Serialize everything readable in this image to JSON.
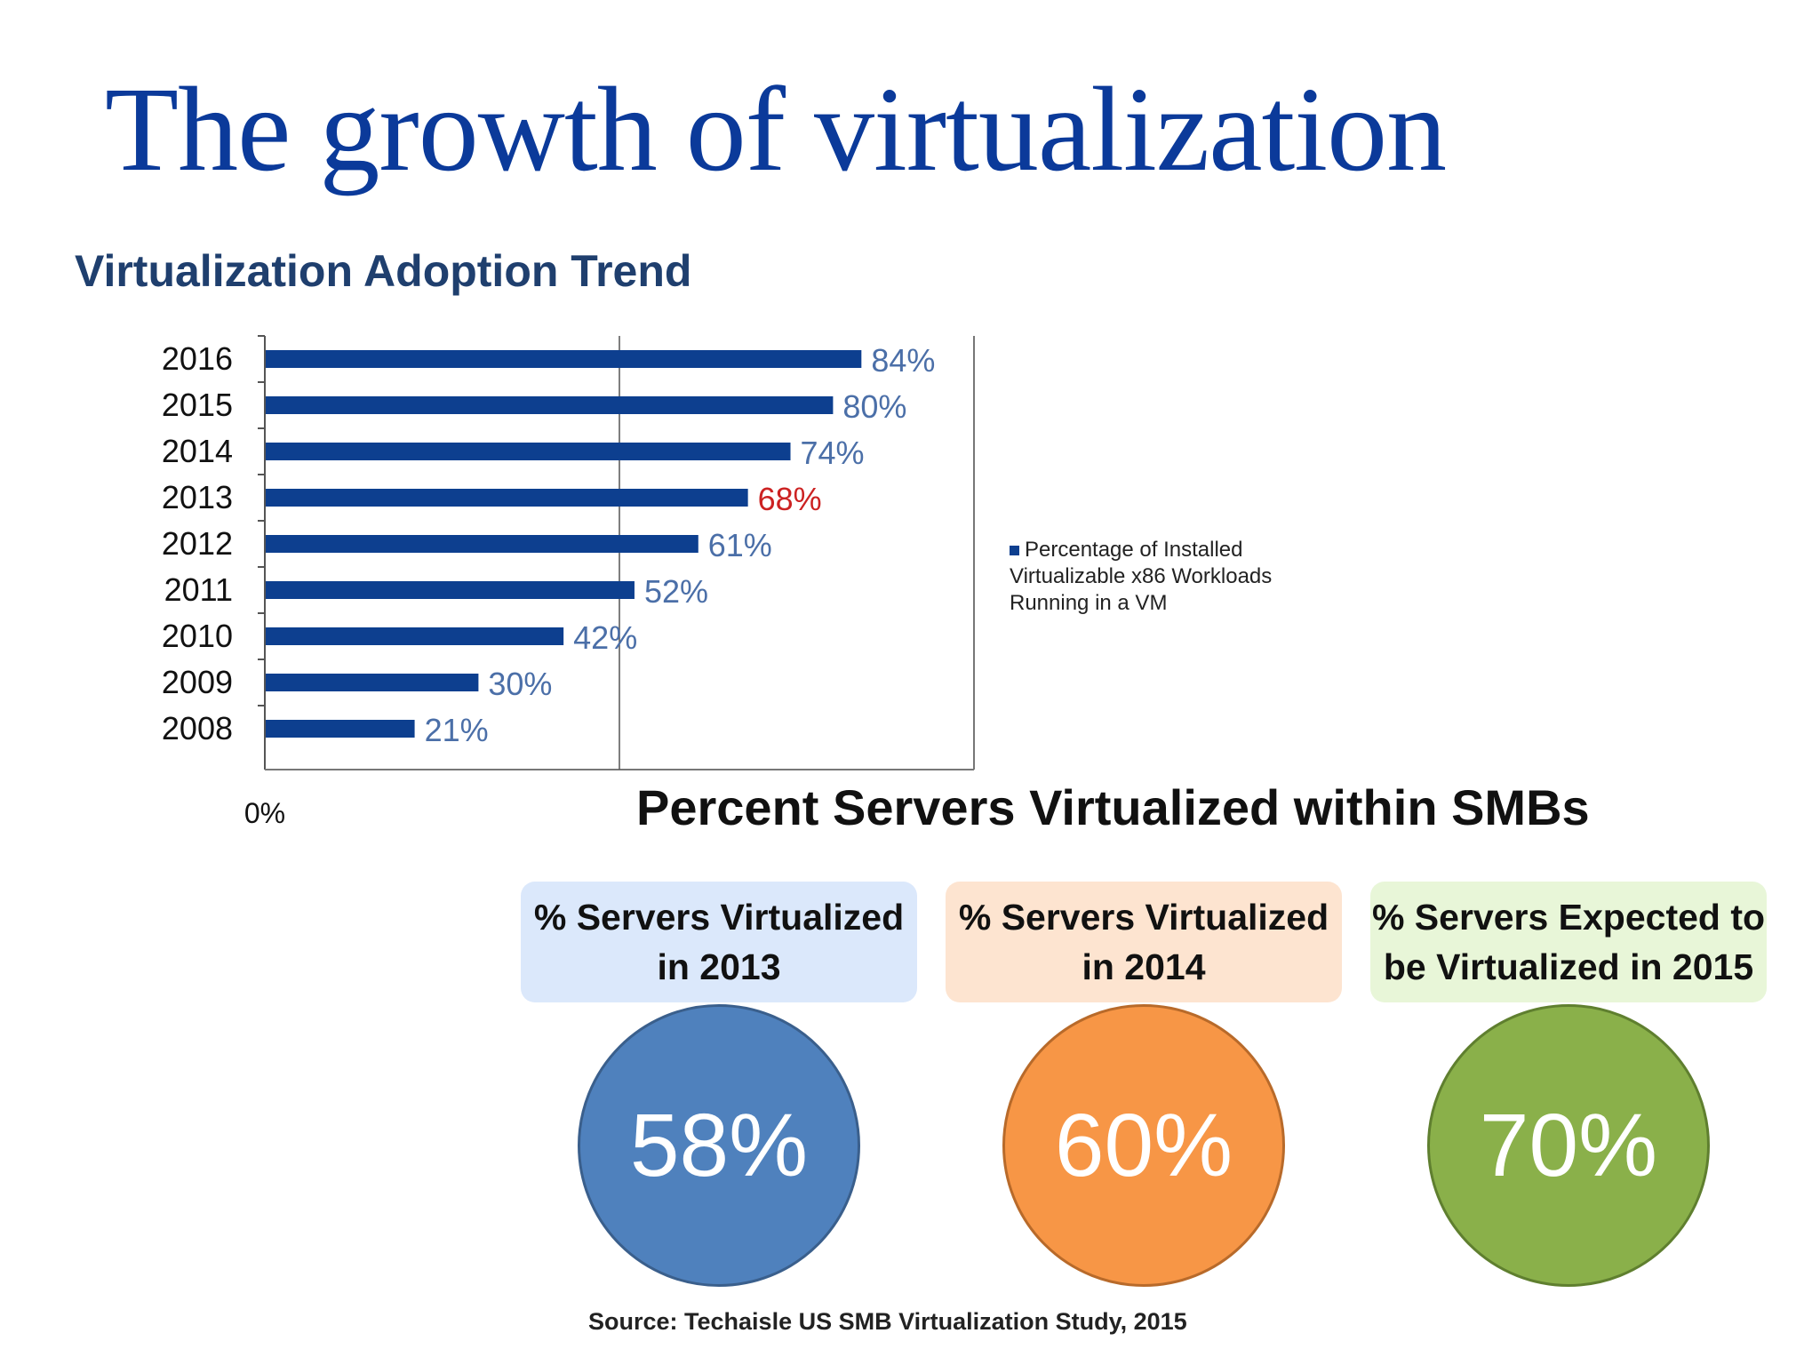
{
  "title": "The growth of virtualization",
  "chart_data": {
    "type": "bar",
    "orientation": "horizontal",
    "title": "Virtualization Adoption Trend",
    "categories": [
      "2016",
      "2015",
      "2014",
      "2013",
      "2012",
      "2011",
      "2010",
      "2009",
      "2008"
    ],
    "series": [
      {
        "name": "Percentage of Installed Virtualizable x86 Workloads Running in a VM",
        "values": [
          84,
          80,
          74,
          68,
          61,
          52,
          42,
          30,
          21
        ],
        "labels": [
          "84%",
          "80%",
          "74%",
          "68%",
          "61%",
          "52%",
          "42%",
          "30%",
          "21%"
        ]
      }
    ],
    "highlight_category": "2013",
    "x_tick_labels": [
      "0%"
    ],
    "xlim": [
      0,
      100
    ],
    "legend_position": "right",
    "grid": false,
    "colors": {
      "bar": "#0d3f8f",
      "label": "#4b6fa8",
      "highlight": "#cc2222"
    }
  },
  "smb": {
    "title": "Percent Servers Virtualized within SMBs",
    "cards": [
      {
        "line1": "% Servers Virtualized",
        "line2": "in 2013",
        "value": "58%",
        "header_color": "#dbe8fb",
        "circle_color": "#4f81bd",
        "border_color": "#3a5f8c"
      },
      {
        "line1": "% Servers Virtualized",
        "line2": "in 2014",
        "value": "60%",
        "header_color": "#fde4d0",
        "circle_color": "#f79646",
        "border_color": "#b86a2a"
      },
      {
        "line1": "% Servers Expected to",
        "line2": "be Virtualized in 2015",
        "value": "70%",
        "header_color": "#e8f6d8",
        "circle_color": "#8ab04a",
        "border_color": "#5f7f2f"
      }
    ],
    "source": "Source: Techaisle US SMB Virtualization Study, 2015"
  }
}
